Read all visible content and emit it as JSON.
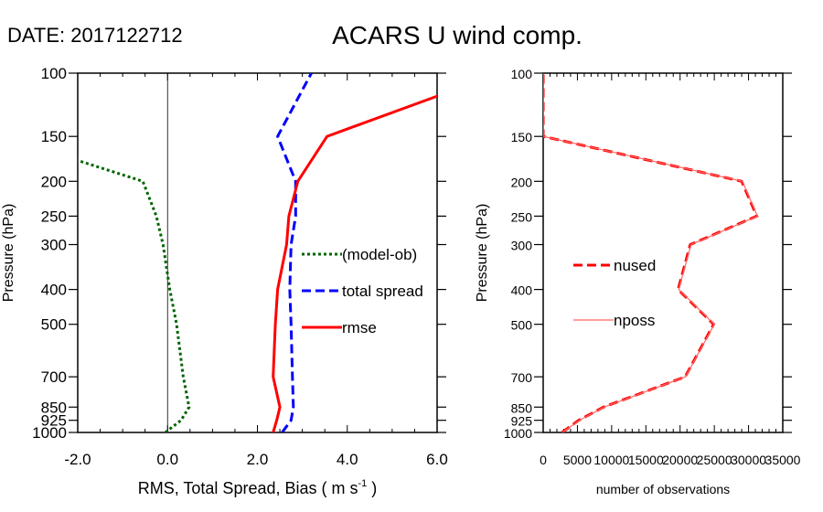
{
  "header": {
    "date_label": "DATE: 2017122712",
    "title": "ACARS U wind comp."
  },
  "chart_data": [
    {
      "type": "line",
      "xlabel": "RMS, Total Spread, Bias ( m s",
      "xlabel_sup": "-1",
      "xlabel_end": " )",
      "ylabel": "Pressure (hPa)",
      "xlim": [
        -2,
        6
      ],
      "ylim": [
        1000,
        100
      ],
      "yscale": "log",
      "xticks": [
        -2,
        0,
        2,
        4,
        6
      ],
      "xtick_labels": [
        "-2.0",
        "0.0",
        "2.0",
        "4.0",
        "6.0"
      ],
      "yticks": [
        100,
        150,
        200,
        250,
        300,
        400,
        500,
        700,
        850,
        925,
        1000
      ],
      "ytick_labels": [
        "100",
        "150",
        "200",
        "250",
        "300",
        "400",
        "500",
        "700",
        "850",
        "925",
        "1000"
      ],
      "legend": "right-middle",
      "pressure": [
        1000,
        925,
        850,
        700,
        500,
        400,
        300,
        250,
        200,
        150,
        100
      ],
      "series": [
        {
          "name": "(model-ob)",
          "color": "#006400",
          "style": "dotted",
          "values": [
            -0.05,
            0.3,
            0.48,
            0.35,
            0.2,
            0.05,
            -0.1,
            -0.25,
            -0.55,
            -3.67,
            null
          ]
        },
        {
          "name": "total spread",
          "color": "#0000ff",
          "style": "dashed",
          "values": [
            2.55,
            2.75,
            2.8,
            2.78,
            2.75,
            2.72,
            2.75,
            2.85,
            2.85,
            2.45,
            3.2
          ]
        },
        {
          "name": "rmse",
          "color": "#ff0000",
          "style": "solid",
          "values": [
            2.35,
            2.43,
            2.5,
            2.35,
            2.4,
            2.45,
            2.65,
            2.7,
            2.9,
            3.55,
            7.4
          ]
        }
      ]
    },
    {
      "type": "line",
      "xlabel": "number of observations",
      "ylabel": "Pressure (hPa)",
      "xlim": [
        0,
        35000
      ],
      "ylim": [
        1000,
        100
      ],
      "yscale": "log",
      "xticks": [
        0,
        5000,
        10000,
        15000,
        20000,
        25000,
        30000,
        35000
      ],
      "xtick_labels": [
        "0",
        "5000",
        "10000",
        "15000",
        "20000",
        "25000",
        "30000",
        "35000"
      ],
      "yticks": [
        100,
        150,
        200,
        250,
        300,
        400,
        500,
        700,
        850,
        925,
        1000
      ],
      "ytick_labels": [
        "100",
        "150",
        "200",
        "250",
        "300",
        "400",
        "500",
        "700",
        "850",
        "925",
        "1000"
      ],
      "legend": "left-middle",
      "pressure": [
        1000,
        925,
        850,
        700,
        500,
        400,
        300,
        250,
        200,
        150,
        100
      ],
      "series": [
        {
          "name": "nused",
          "color": "#ff0000",
          "style": "dashed",
          "values": [
            2750,
            5200,
            8800,
            20750,
            24900,
            19700,
            21500,
            31200,
            29000,
            0,
            0
          ]
        },
        {
          "name": "nposs",
          "color": "#ff6666",
          "style": "solid",
          "values": [
            2800,
            5300,
            8900,
            20800,
            25000,
            19800,
            21600,
            31300,
            29100,
            0,
            0
          ]
        }
      ]
    }
  ]
}
